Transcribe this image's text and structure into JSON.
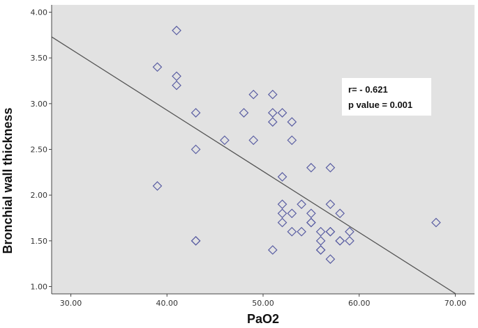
{
  "chart_data": {
    "type": "scatter",
    "xlabel": "PaO2",
    "ylabel": "Bronchial  wall thickness",
    "xlim": [
      28,
      72
    ],
    "ylim": [
      0.92,
      4.08
    ],
    "xticks": [
      "30.00",
      "40.00",
      "50.00",
      "60.00",
      "70.00"
    ],
    "yticks": [
      "1.00",
      "1.50",
      "2.00",
      "2.50",
      "3.00",
      "3.50",
      "4.00"
    ],
    "grid": false,
    "legend": "none",
    "colors": {
      "plot_background": "#e2e2e2",
      "marker": "#5b5fa3",
      "fit_line": "#555555"
    },
    "marker": "diamond-open",
    "fit_line": {
      "x1": 28,
      "y1": 3.73,
      "x2": 72,
      "y2": 0.79
    },
    "annotations": [
      "r= - 0.621",
      "p value = 0.001"
    ],
    "points": [
      [
        39,
        3.4
      ],
      [
        39,
        2.1
      ],
      [
        41,
        3.8
      ],
      [
        41,
        3.3
      ],
      [
        41,
        3.2
      ],
      [
        43,
        2.9
      ],
      [
        43,
        2.5
      ],
      [
        43,
        1.5
      ],
      [
        43,
        1.5
      ],
      [
        46,
        2.6
      ],
      [
        48,
        2.9
      ],
      [
        49,
        3.1
      ],
      [
        49,
        2.6
      ],
      [
        51,
        3.1
      ],
      [
        51,
        2.9
      ],
      [
        51,
        2.8
      ],
      [
        51,
        1.4
      ],
      [
        52,
        2.9
      ],
      [
        52,
        2.2
      ],
      [
        52,
        1.9
      ],
      [
        52,
        1.8
      ],
      [
        52,
        1.7
      ],
      [
        53,
        2.8
      ],
      [
        53,
        2.6
      ],
      [
        53,
        1.8
      ],
      [
        53,
        1.6
      ],
      [
        54,
        1.9
      ],
      [
        54,
        1.6
      ],
      [
        55,
        2.3
      ],
      [
        55,
        1.8
      ],
      [
        55,
        1.7
      ],
      [
        55,
        1.7
      ],
      [
        56,
        1.6
      ],
      [
        56,
        1.5
      ],
      [
        56,
        1.4
      ],
      [
        56,
        1.4
      ],
      [
        57,
        2.3
      ],
      [
        57,
        1.9
      ],
      [
        57,
        1.6
      ],
      [
        57,
        1.6
      ],
      [
        57,
        1.3
      ],
      [
        58,
        1.8
      ],
      [
        58,
        1.5
      ],
      [
        58,
        1.5
      ],
      [
        59,
        1.6
      ],
      [
        59,
        1.5
      ],
      [
        68,
        1.7
      ]
    ]
  }
}
